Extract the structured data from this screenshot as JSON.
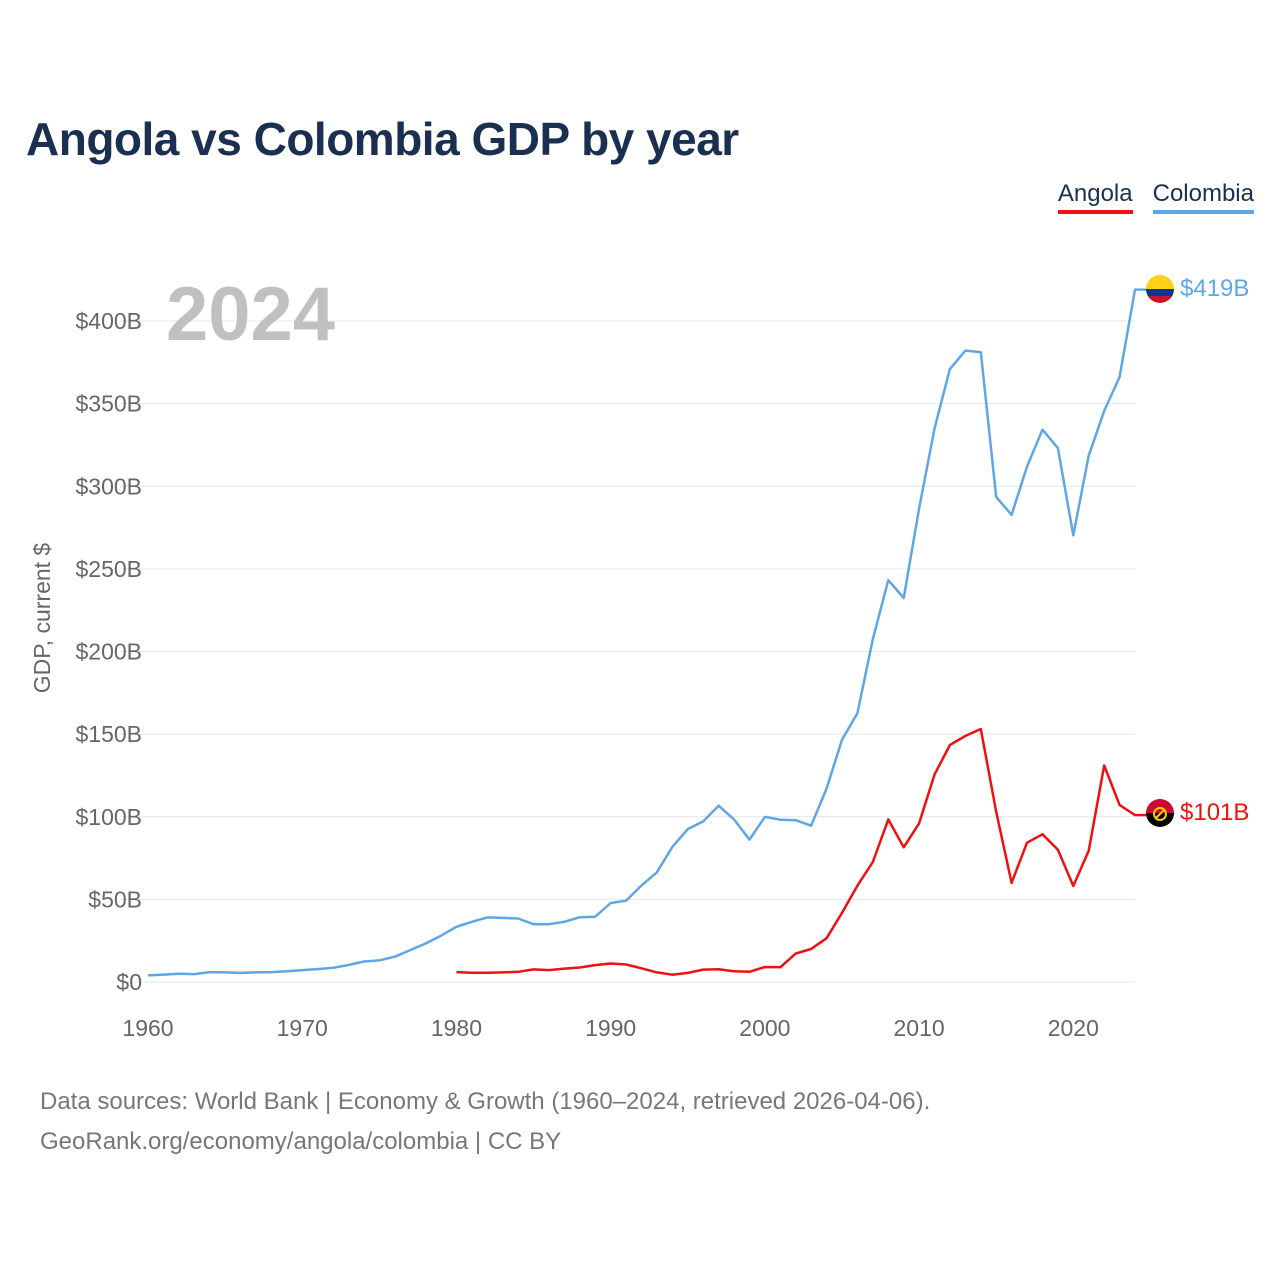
{
  "title": "Angola vs Colombia GDP by year",
  "legend": {
    "angola": "Angola",
    "colombia": "Colombia"
  },
  "year_watermark": "2024",
  "end_labels": {
    "angola": "$101B",
    "colombia": "$419B"
  },
  "colors": {
    "angola": "#ee1111",
    "colombia": "#5fa6e6",
    "title": "#1b3050"
  },
  "footer": {
    "line1": "Data sources: World Bank | Economy & Growth (1960–2024, retrieved 2026-04-06).",
    "line2": "GeoRank.org/economy/angola/colombia | CC BY"
  },
  "chart_data": {
    "type": "line",
    "title": "Angola vs Colombia GDP by year",
    "xlabel": "",
    "ylabel": "GDP, current $",
    "xlim": [
      1960,
      2024
    ],
    "ylim": [
      0,
      420
    ],
    "y_unit": "billions USD",
    "x_ticks": [
      1960,
      1970,
      1980,
      1990,
      2000,
      2010,
      2020
    ],
    "y_ticks": [
      0,
      50,
      100,
      150,
      200,
      250,
      300,
      350,
      400
    ],
    "y_tick_labels": [
      "$0",
      "$50B",
      "$100B",
      "$150B",
      "$200B",
      "$250B",
      "$300B",
      "$350B",
      "$400B"
    ],
    "series": [
      {
        "name": "Colombia",
        "x": [
          1960,
          1961,
          1962,
          1963,
          1964,
          1965,
          1966,
          1967,
          1968,
          1969,
          1970,
          1971,
          1972,
          1973,
          1974,
          1975,
          1976,
          1977,
          1978,
          1979,
          1980,
          1981,
          1982,
          1983,
          1984,
          1985,
          1986,
          1987,
          1988,
          1989,
          1990,
          1991,
          1992,
          1993,
          1994,
          1995,
          1996,
          1997,
          1998,
          1999,
          2000,
          2001,
          2002,
          2003,
          2004,
          2005,
          2006,
          2007,
          2008,
          2009,
          2010,
          2011,
          2012,
          2013,
          2014,
          2015,
          2016,
          2017,
          2018,
          2019,
          2020,
          2021,
          2022,
          2023,
          2024
        ],
        "values": [
          4.0,
          4.5,
          5.0,
          4.8,
          6.0,
          5.8,
          5.5,
          5.8,
          6.0,
          6.5,
          7.2,
          7.8,
          8.6,
          10.3,
          12.4,
          13.1,
          15.3,
          19.3,
          23.3,
          28.0,
          33.4,
          36.4,
          39.1,
          38.8,
          38.4,
          35.0,
          35.0,
          36.4,
          39.2,
          39.5,
          47.8,
          49.2,
          58.4,
          66.4,
          81.7,
          92.5,
          97.2,
          106.7,
          98.4,
          86.2,
          99.9,
          98.2,
          97.9,
          94.6,
          117.1,
          146.6,
          162.6,
          207.4,
          243.2,
          232.4,
          286.5,
          334.9,
          370.9,
          382.1,
          381.2,
          293.5,
          282.7,
          311.9,
          334.2,
          323.1,
          270.3,
          318.5,
          345.6,
          366.2,
          419.0
        ]
      },
      {
        "name": "Angola",
        "x": [
          1980,
          1981,
          1982,
          1983,
          1984,
          1985,
          1986,
          1987,
          1988,
          1989,
          1990,
          1991,
          1992,
          1993,
          1994,
          1995,
          1996,
          1997,
          1998,
          1999,
          2000,
          2001,
          2002,
          2003,
          2004,
          2005,
          2006,
          2007,
          2008,
          2009,
          2010,
          2011,
          2012,
          2013,
          2014,
          2015,
          2016,
          2017,
          2018,
          2019,
          2020,
          2021,
          2022,
          2023,
          2024
        ],
        "values": [
          6.0,
          5.6,
          5.6,
          5.8,
          6.2,
          7.6,
          7.2,
          8.1,
          8.8,
          10.2,
          11.2,
          10.6,
          8.3,
          5.8,
          4.4,
          5.5,
          7.5,
          7.7,
          6.5,
          6.2,
          9.1,
          8.9,
          17.2,
          20.0,
          26.5,
          41.8,
          58.3,
          72.6,
          98.4,
          81.5,
          96.0,
          125.5,
          143.4,
          148.9,
          153.1,
          103.0,
          60.0,
          84.3,
          89.4,
          80.0,
          58.1,
          79.4,
          131.0,
          107.1,
          101.0
        ]
      }
    ]
  }
}
